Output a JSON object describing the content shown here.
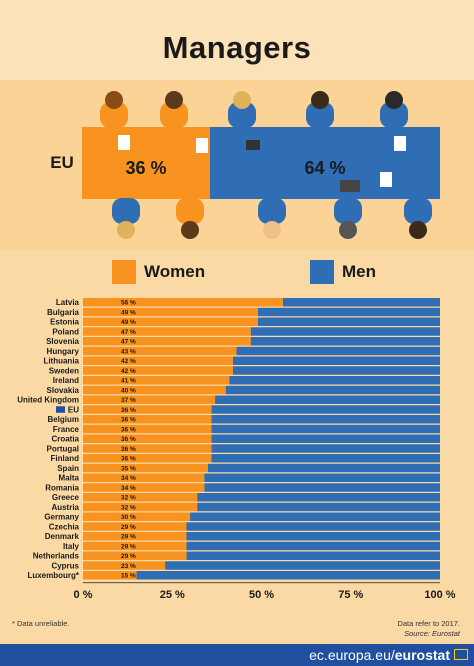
{
  "title": "Managers",
  "hero": {
    "region": "EU",
    "women_pct": "36 %",
    "men_pct": "64 %",
    "women_share": 36
  },
  "legend": {
    "women": "Women",
    "men": "Men"
  },
  "colors": {
    "women": "#f7931e",
    "men": "#2f6db5",
    "background": "#fbd9a4",
    "footer": "#1f4f9e"
  },
  "chart_data": {
    "type": "bar",
    "orientation": "horizontal",
    "stacked": true,
    "categories": [
      "Latvia",
      "Bulgaria",
      "Estonia",
      "Poland",
      "Slovenia",
      "Hungary",
      "Lithuania",
      "Sweden",
      "Ireland",
      "Slovakia",
      "United Kingdom",
      "EU",
      "Belgium",
      "France",
      "Croatia",
      "Portugal",
      "Finland",
      "Spain",
      "Malta",
      "Romania",
      "Greece",
      "Austria",
      "Germany",
      "Czechia",
      "Denmark",
      "Italy",
      "Netherlands",
      "Cyprus",
      "Luxembourg*"
    ],
    "series": [
      {
        "name": "Women",
        "values": [
          56,
          49,
          49,
          47,
          47,
          43,
          42,
          42,
          41,
          40,
          37,
          36,
          36,
          36,
          36,
          36,
          36,
          35,
          34,
          34,
          32,
          32,
          30,
          29,
          29,
          29,
          29,
          23,
          15
        ]
      },
      {
        "name": "Men",
        "values": [
          44,
          51,
          51,
          53,
          53,
          57,
          58,
          58,
          59,
          60,
          63,
          64,
          64,
          64,
          64,
          64,
          64,
          65,
          66,
          66,
          68,
          68,
          70,
          71,
          71,
          71,
          71,
          77,
          85
        ]
      }
    ],
    "value_labels": [
      "56 %",
      "49 %",
      "49 %",
      "47 %",
      "47 %",
      "43 %",
      "42 %",
      "42 %",
      "41 %",
      "40 %",
      "37 %",
      "36 %",
      "36 %",
      "36 %",
      "36 %",
      "36 %",
      "36 %",
      "35 %",
      "34 %",
      "34 %",
      "32 %",
      "32 %",
      "30 %",
      "29 %",
      "29 %",
      "29 %",
      "29 %",
      "23 %",
      "15 %"
    ],
    "highlight": "EU",
    "xlim": [
      0,
      100
    ],
    "xticks": [
      "0 %",
      "25 %",
      "50 %",
      "75 %",
      "100 %"
    ],
    "grid": false
  },
  "notes": {
    "left": "* Data unreliable.",
    "right1": "Data refer to 2017.",
    "right2": "Source: Eurostat"
  },
  "footer": {
    "site": "ec.europa.eu/",
    "brand": "eurostat"
  }
}
